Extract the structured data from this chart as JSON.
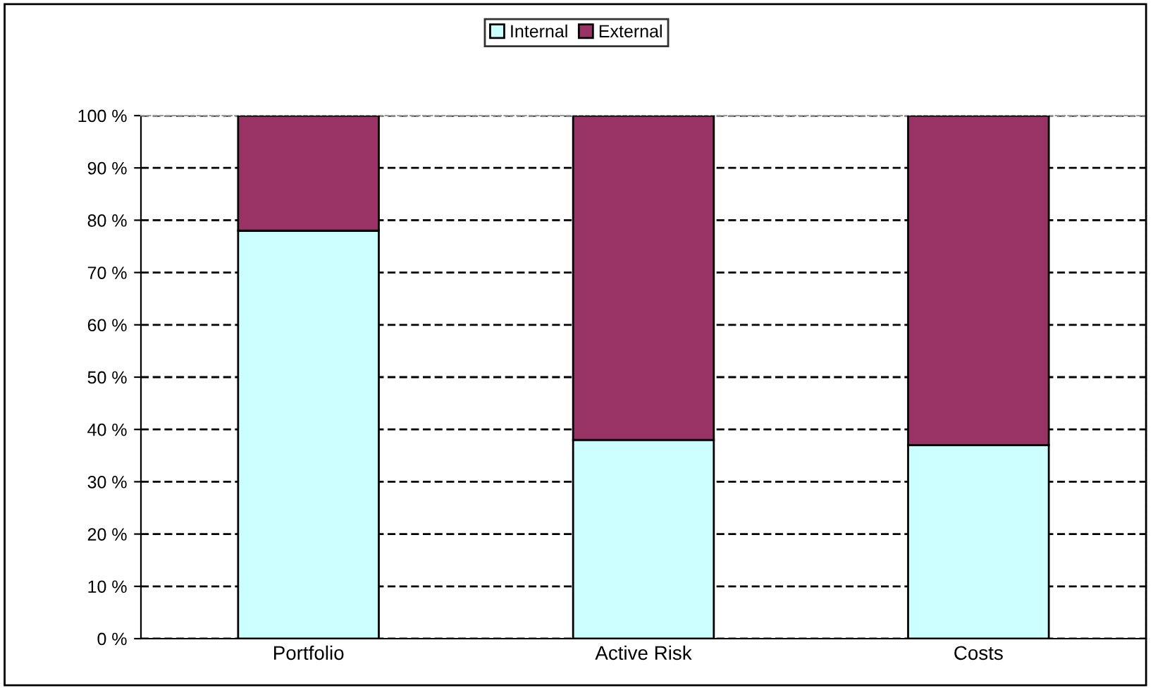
{
  "chart_data": {
    "type": "bar",
    "stacked": true,
    "categories": [
      "Portfolio",
      "Active Risk",
      "Costs"
    ],
    "series": [
      {
        "name": "Internal",
        "color": "#ccffff",
        "values": [
          78,
          38,
          37
        ]
      },
      {
        "name": "External",
        "color": "#993366",
        "values": [
          22,
          62,
          63
        ]
      }
    ],
    "ylim": [
      0,
      100
    ],
    "yticks": [
      {
        "value": 0,
        "label": "0 %"
      },
      {
        "value": 10,
        "label": "10 %"
      },
      {
        "value": 20,
        "label": "20 %"
      },
      {
        "value": 30,
        "label": "30 %"
      },
      {
        "value": 40,
        "label": "40 %"
      },
      {
        "value": 50,
        "label": "50 %"
      },
      {
        "value": 60,
        "label": "60 %"
      },
      {
        "value": 70,
        "label": "70 %"
      },
      {
        "value": 80,
        "label": "80 %"
      },
      {
        "value": 90,
        "label": "90 %"
      },
      {
        "value": 100,
        "label": "100 %"
      }
    ],
    "grid": "y",
    "legend": "top"
  }
}
